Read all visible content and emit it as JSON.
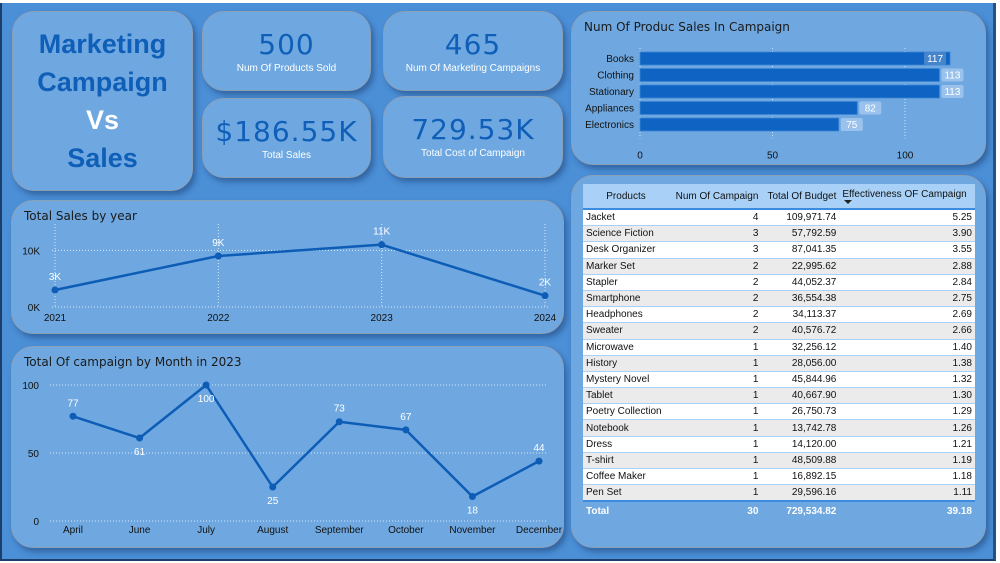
{
  "title": {
    "lines": [
      "Marketing",
      "Campaign",
      "Vs",
      "Sales"
    ]
  },
  "kpis": [
    {
      "value": "500",
      "label": "Num Of Products Sold"
    },
    {
      "value": "465",
      "label": "Num Of Marketing Campaigns"
    },
    {
      "value": "$186.55K",
      "label": "Total Sales"
    },
    {
      "value": "729.53K",
      "label": "Total Cost of Campaign"
    }
  ],
  "colors": {
    "background": "#4b8fd7",
    "card": "#6fa8e0",
    "accent": "#0f5fb8",
    "line": "#0d5cb6",
    "bar": "#0f63c2"
  },
  "chart_data": [
    {
      "type": "bar",
      "orientation": "horizontal",
      "title": "Num Of Produc Sales In Campaign",
      "categories": [
        "Books",
        "Clothing",
        "Stationary",
        "Appliances",
        "Electronics"
      ],
      "values": [
        117,
        113,
        113,
        82,
        75
      ],
      "xlabel": "",
      "ylabel": "",
      "xlim": [
        0,
        117
      ],
      "xticks": [
        "0",
        "50",
        "100"
      ],
      "grid": true
    },
    {
      "type": "line",
      "title": "Total Sales by year",
      "x": [
        "2021",
        "2022",
        "2023",
        "2024"
      ],
      "values": [
        3000,
        9000,
        11000,
        2000
      ],
      "data_labels": [
        "3K",
        "9K",
        "11K",
        "2K"
      ],
      "yticks": [
        "0K",
        "10K"
      ],
      "ylim": [
        0,
        12000
      ],
      "grid": true
    },
    {
      "type": "line",
      "title": "Total Of campaign by Month in 2023",
      "x": [
        "April",
        "June",
        "July",
        "August",
        "September",
        "October",
        "November",
        "December"
      ],
      "values": [
        77,
        61,
        100,
        25,
        73,
        67,
        18,
        44
      ],
      "data_labels": [
        "77",
        "61",
        "100",
        "25",
        "73",
        "67",
        "18",
        "44"
      ],
      "yticks": [
        "0",
        "50",
        "100"
      ],
      "ylim": [
        0,
        100
      ],
      "grid": true
    }
  ],
  "table": {
    "headers": [
      "Products",
      "Num Of Campaign",
      "Total Of Budget",
      "Effectiveness OF Campaign"
    ],
    "sorted_column": "Effectiveness OF Campaign",
    "sort_direction": "descending",
    "rows": [
      [
        "Jacket",
        "4",
        "109,971.74",
        "5.25"
      ],
      [
        "Science Fiction",
        "3",
        "57,792.59",
        "3.90"
      ],
      [
        "Desk Organizer",
        "3",
        "87,041.35",
        "3.55"
      ],
      [
        "Marker Set",
        "2",
        "22,995.62",
        "2.88"
      ],
      [
        "Stapler",
        "2",
        "44,052.37",
        "2.84"
      ],
      [
        "Smartphone",
        "2",
        "36,554.38",
        "2.75"
      ],
      [
        "Headphones",
        "2",
        "34,113.37",
        "2.69"
      ],
      [
        "Sweater",
        "2",
        "40,576.72",
        "2.66"
      ],
      [
        "Microwave",
        "1",
        "32,256.12",
        "1.40"
      ],
      [
        "History",
        "1",
        "28,056.00",
        "1.38"
      ],
      [
        "Mystery Novel",
        "1",
        "45,844.96",
        "1.32"
      ],
      [
        "Tablet",
        "1",
        "40,667.90",
        "1.30"
      ],
      [
        "Poetry Collection",
        "1",
        "26,750.73",
        "1.29"
      ],
      [
        "Notebook",
        "1",
        "13,742.78",
        "1.26"
      ],
      [
        "Dress",
        "1",
        "14,120.00",
        "1.21"
      ],
      [
        "T-shirt",
        "1",
        "48,509.88",
        "1.19"
      ],
      [
        "Coffee Maker",
        "1",
        "16,892.15",
        "1.18"
      ],
      [
        "Pen Set",
        "1",
        "29,596.16",
        "1.11"
      ]
    ],
    "total": [
      "Total",
      "30",
      "729,534.82",
      "39.18"
    ]
  }
}
